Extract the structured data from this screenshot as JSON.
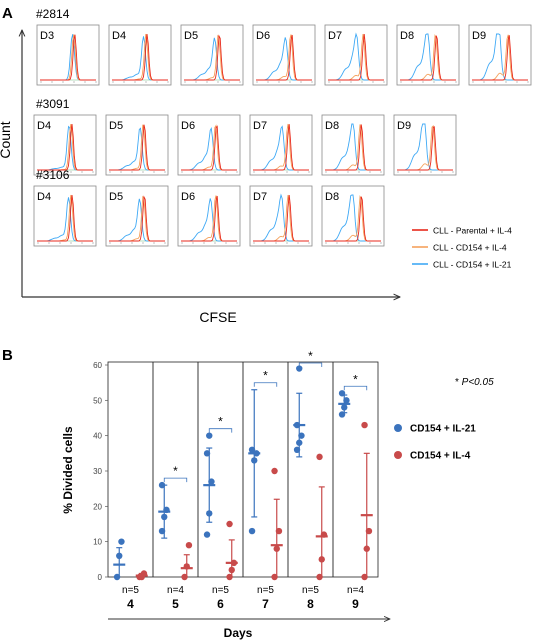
{
  "figure": {
    "panel_a_label": "A",
    "panel_b_label": "B"
  },
  "colors": {
    "parental_il4": "#e8291c",
    "cd154_il4": "#f5a25d",
    "cd154_il21": "#3fa9f5",
    "series_il21": "#3b73bd",
    "series_il4": "#c84a4a"
  },
  "chart_data": [
    {
      "type": "histogram-panels",
      "panel": "A",
      "xlabel": "CFSE",
      "ylabel": "Count",
      "legend_position": "right",
      "legend": [
        {
          "label": "CLL - Parental + IL-4",
          "color_key": "parental_il4"
        },
        {
          "label": "CLL - CD154 + IL-4",
          "color_key": "cd154_il4"
        },
        {
          "label": "CLL - CD154 + IL-21",
          "color_key": "cd154_il21"
        }
      ],
      "patients": [
        {
          "id": "#2814",
          "days": [
            "D3",
            "D4",
            "D5",
            "D6",
            "D7",
            "D8",
            "D9"
          ]
        },
        {
          "id": "#3091",
          "days": [
            "D4",
            "D5",
            "D6",
            "D7",
            "D8",
            "D9"
          ]
        },
        {
          "id": "#3106",
          "days": [
            "D4",
            "D5",
            "D6",
            "D7",
            "D8"
          ]
        }
      ]
    },
    {
      "type": "scatter",
      "panel": "B",
      "xlabel": "Days",
      "ylabel": "% Divided cells",
      "ylim": [
        0,
        60
      ],
      "yticks": [
        0,
        10,
        20,
        30,
        40,
        50,
        60
      ],
      "significance_note_prefix": "* ",
      "significance_note": "P<0.05",
      "legend_position": "right",
      "days": [
        {
          "day": "4",
          "n": "n=5",
          "sig": false,
          "il21": {
            "points": [
              0,
              6,
              10
            ],
            "mean": 3.5,
            "sd": 4.8
          },
          "il4": {
            "points": [
              0,
              0,
              1
            ],
            "mean": 0.4,
            "sd": 0.6
          }
        },
        {
          "day": "5",
          "n": "n=4",
          "sig": true,
          "il21": {
            "points": [
              13,
              17,
              19,
              26
            ],
            "mean": 18.5,
            "sd": 7.5
          },
          "il4": {
            "points": [
              0,
              3,
              9
            ],
            "mean": 2.5,
            "sd": 3.8
          }
        },
        {
          "day": "6",
          "n": "n=5",
          "sig": true,
          "il21": {
            "points": [
              12,
              18,
              27,
              35,
              40
            ],
            "mean": 26,
            "sd": 10.5
          },
          "il4": {
            "points": [
              0,
              2,
              4,
              15
            ],
            "mean": 4,
            "sd": 6.5
          }
        },
        {
          "day": "7",
          "n": "n=5",
          "sig": true,
          "il21": {
            "points": [
              13,
              33,
              35,
              36
            ],
            "mean": 35,
            "sd": 18
          },
          "il4": {
            "points": [
              0,
              8,
              13,
              30
            ],
            "mean": 9,
            "sd": 13
          }
        },
        {
          "day": "8",
          "n": "n=5",
          "sig": true,
          "il21": {
            "points": [
              36,
              38,
              40,
              43,
              59
            ],
            "mean": 43,
            "sd": 9
          },
          "il4": {
            "points": [
              0,
              5,
              12,
              34
            ],
            "mean": 11.5,
            "sd": 14
          }
        },
        {
          "day": "9",
          "n": "n=4",
          "sig": true,
          "il21": {
            "points": [
              46,
              48,
              50,
              52
            ],
            "mean": 49,
            "sd": 2.5
          },
          "il4": {
            "points": [
              0,
              8,
              13,
              43
            ],
            "mean": 17.5,
            "sd": 17.5
          }
        }
      ],
      "series": [
        {
          "name": "CD154 + IL-21",
          "key": "il21",
          "color_key": "series_il21"
        },
        {
          "name": "CD154 + IL-4",
          "key": "il4",
          "color_key": "series_il4"
        }
      ]
    }
  ]
}
